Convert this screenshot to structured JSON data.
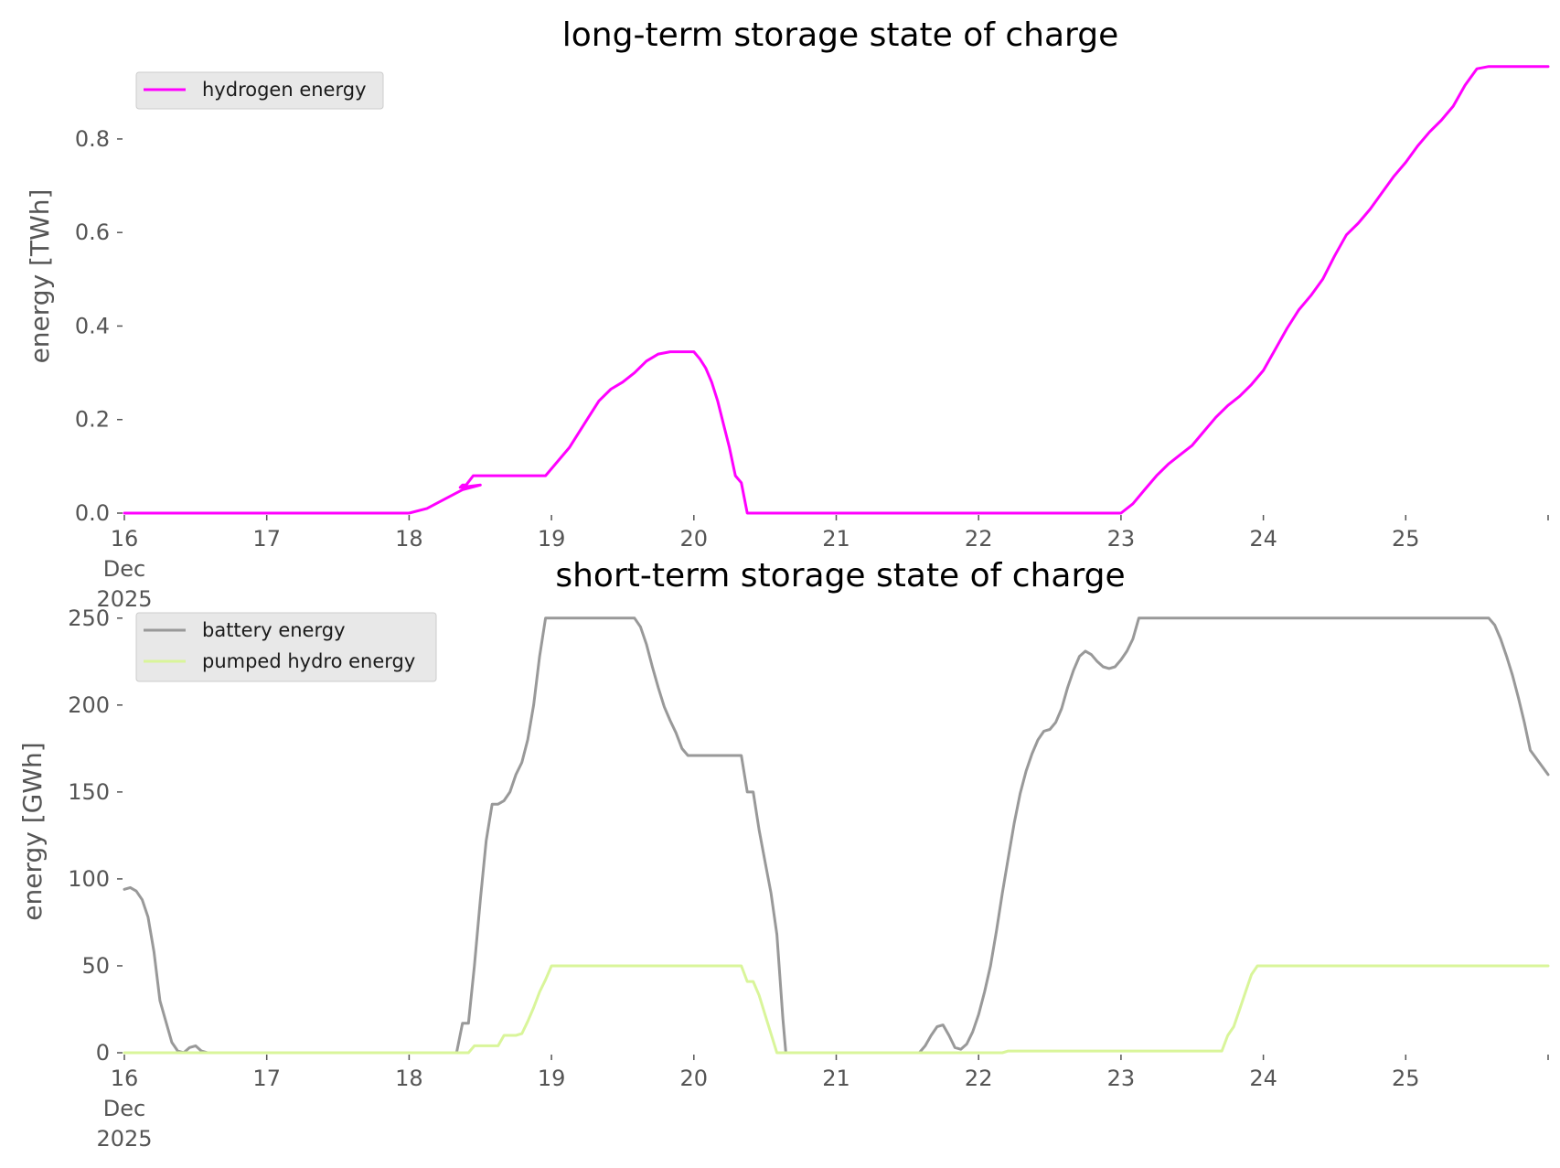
{
  "chart_data": [
    {
      "type": "line",
      "title": "long-term storage state of charge",
      "xlabel": "",
      "ylabel": "energy [TWh]",
      "x_axis": "date",
      "xlim": [
        "2025-12-16T00:00",
        "2025-12-26T00:00"
      ],
      "x_ticks": [
        "2025-12-16",
        "2025-12-17",
        "2025-12-18",
        "2025-12-19",
        "2025-12-20",
        "2025-12-21",
        "2025-12-22",
        "2025-12-23",
        "2025-12-24",
        "2025-12-25"
      ],
      "x_tick_labels": [
        [
          "16",
          "Dec",
          "2025"
        ],
        [
          "17"
        ],
        [
          "18"
        ],
        [
          "19"
        ],
        [
          "20"
        ],
        [
          "21"
        ],
        [
          "22"
        ],
        [
          "23"
        ],
        [
          "24"
        ],
        [
          "25"
        ]
      ],
      "ylim": [
        0,
        0.97
      ],
      "y_ticks": [
        0.0,
        0.2,
        0.4,
        0.6,
        0.8
      ],
      "y_tick_labels": [
        "0.0",
        "0.2",
        "0.4",
        "0.6",
        "0.8"
      ],
      "grid": false,
      "legend": {
        "position": "top-left"
      },
      "series": [
        {
          "name": "hydrogen energy",
          "color": "#ff00ff",
          "points": [
            [
              "2025-12-16T00:00",
              0.0
            ],
            [
              "2025-12-18T00:00",
              0.0
            ],
            [
              "2025-12-18T03:00",
              0.01
            ],
            [
              "2025-12-18T06:00",
              0.03
            ],
            [
              "2025-12-18T09:00",
              0.05
            ],
            [
              "2025-12-18T12:00",
              0.06
            ],
            [
              "2025-12-18T08:36",
              0.055
            ],
            [
              "2025-12-18T09:00",
              0.06
            ],
            [
              "2025-12-18T09:00",
              0.06
            ],
            [
              "2025-12-18T09:00",
              0.06
            ],
            [
              "2025-12-18T09:36",
              0.06
            ],
            [
              "2025-12-18T10:48",
              0.08
            ],
            [
              "2025-12-18T13:00",
              0.08
            ],
            [
              "2025-12-18T23:00",
              0.08
            ],
            [
              "2025-12-19T03:00",
              0.14
            ],
            [
              "2025-12-19T06:00",
              0.2
            ],
            [
              "2025-12-19T08:00",
              0.24
            ],
            [
              "2025-12-19T10:00",
              0.265
            ],
            [
              "2025-12-19T12:00",
              0.28
            ],
            [
              "2025-12-19T14:00",
              0.3
            ],
            [
              "2025-12-19T16:00",
              0.325
            ],
            [
              "2025-12-19T18:00",
              0.34
            ],
            [
              "2025-12-19T20:00",
              0.345
            ],
            [
              "2025-12-19T23:00",
              0.345
            ],
            [
              "2025-12-20T00:00",
              0.345
            ],
            [
              "2025-12-20T01:00",
              0.33
            ],
            [
              "2025-12-20T02:00",
              0.31
            ],
            [
              "2025-12-20T03:00",
              0.28
            ],
            [
              "2025-12-20T04:00",
              0.24
            ],
            [
              "2025-12-20T05:00",
              0.19
            ],
            [
              "2025-12-20T06:00",
              0.14
            ],
            [
              "2025-12-20T07:00",
              0.08
            ],
            [
              "2025-12-20T08:00",
              0.065
            ],
            [
              "2025-12-20T09:00",
              0.0
            ],
            [
              "2025-12-20T10:00",
              0.0
            ],
            [
              "2025-12-23T00:00",
              0.0
            ],
            [
              "2025-12-23T02:00",
              0.02
            ],
            [
              "2025-12-23T04:00",
              0.05
            ],
            [
              "2025-12-23T06:00",
              0.08
            ],
            [
              "2025-12-23T08:00",
              0.105
            ],
            [
              "2025-12-23T10:00",
              0.125
            ],
            [
              "2025-12-23T12:00",
              0.145
            ],
            [
              "2025-12-23T14:00",
              0.175
            ],
            [
              "2025-12-23T16:00",
              0.205
            ],
            [
              "2025-12-23T18:00",
              0.23
            ],
            [
              "2025-12-23T20:00",
              0.25
            ],
            [
              "2025-12-23T22:00",
              0.275
            ],
            [
              "2025-12-24T00:00",
              0.305
            ],
            [
              "2025-12-24T02:00",
              0.35
            ],
            [
              "2025-12-24T04:00",
              0.395
            ],
            [
              "2025-12-24T06:00",
              0.435
            ],
            [
              "2025-12-24T08:00",
              0.465
            ],
            [
              "2025-12-24T10:00",
              0.5
            ],
            [
              "2025-12-24T12:00",
              0.55
            ],
            [
              "2025-12-24T14:00",
              0.595
            ],
            [
              "2025-12-24T16:00",
              0.62
            ],
            [
              "2025-12-24T18:00",
              0.65
            ],
            [
              "2025-12-24T20:00",
              0.685
            ],
            [
              "2025-12-24T22:00",
              0.72
            ],
            [
              "2025-12-25T00:00",
              0.75
            ],
            [
              "2025-12-25T02:00",
              0.785
            ],
            [
              "2025-12-25T04:00",
              0.815
            ],
            [
              "2025-12-25T06:00",
              0.84
            ],
            [
              "2025-12-25T08:00",
              0.87
            ],
            [
              "2025-12-25T10:00",
              0.915
            ],
            [
              "2025-12-25T12:00",
              0.95
            ],
            [
              "2025-12-25T14:00",
              0.955
            ],
            [
              "2025-12-26T00:00",
              0.955
            ]
          ]
        }
      ]
    },
    {
      "type": "line",
      "title": "short-term storage state of charge",
      "xlabel": "",
      "ylabel": "energy [GWh]",
      "x_axis": "date",
      "xlim": [
        "2025-12-16T00:00",
        "2025-12-26T00:00"
      ],
      "x_ticks": [
        "2025-12-16",
        "2025-12-17",
        "2025-12-18",
        "2025-12-19",
        "2025-12-20",
        "2025-12-21",
        "2025-12-22",
        "2025-12-23",
        "2025-12-24",
        "2025-12-25"
      ],
      "x_tick_labels": [
        [
          "16",
          "Dec",
          "2025"
        ],
        [
          "17"
        ],
        [
          "18"
        ],
        [
          "19"
        ],
        [
          "20"
        ],
        [
          "21"
        ],
        [
          "22"
        ],
        [
          "23"
        ],
        [
          "24"
        ],
        [
          "25"
        ]
      ],
      "ylim": [
        0,
        252
      ],
      "y_ticks": [
        0,
        50,
        100,
        150,
        200,
        250
      ],
      "y_tick_labels": [
        "0",
        "50",
        "100",
        "150",
        "200",
        "250"
      ],
      "grid": false,
      "legend": {
        "position": "top-left"
      },
      "series": [
        {
          "name": "battery energy",
          "color": "#999999",
          "points": [
            [
              "2025-12-16T00:00",
              94
            ],
            [
              "2025-12-16T01:00",
              95
            ],
            [
              "2025-12-16T02:00",
              93
            ],
            [
              "2025-12-16T03:00",
              88
            ],
            [
              "2025-12-16T04:00",
              78
            ],
            [
              "2025-12-16T05:00",
              58
            ],
            [
              "2025-12-16T06:00",
              30
            ],
            [
              "2025-12-16T08:00",
              6
            ],
            [
              "2025-12-16T09:00",
              1
            ],
            [
              "2025-12-16T10:00",
              0
            ],
            [
              "2025-12-16T11:00",
              3
            ],
            [
              "2025-12-16T12:00",
              4
            ],
            [
              "2025-12-16T13:00",
              1
            ],
            [
              "2025-12-16T14:00",
              0
            ],
            [
              "2025-12-18T08:00",
              0
            ],
            [
              "2025-12-18T09:00",
              17
            ],
            [
              "2025-12-18T10:00",
              17
            ],
            [
              "2025-12-18T11:00",
              50
            ],
            [
              "2025-12-18T12:00",
              88
            ],
            [
              "2025-12-18T13:00",
              122
            ],
            [
              "2025-12-18T14:00",
              143
            ],
            [
              "2025-12-18T15:00",
              143
            ],
            [
              "2025-12-18T16:00",
              145
            ],
            [
              "2025-12-18T17:00",
              150
            ],
            [
              "2025-12-18T18:00",
              160
            ],
            [
              "2025-12-18T19:00",
              167
            ],
            [
              "2025-12-18T20:00",
              180
            ],
            [
              "2025-12-18T21:00",
              200
            ],
            [
              "2025-12-18T22:00",
              228
            ],
            [
              "2025-12-18T23:00",
              250
            ],
            [
              "2025-12-19T14:00",
              250
            ],
            [
              "2025-12-19T15:00",
              245
            ],
            [
              "2025-12-19T16:00",
              235
            ],
            [
              "2025-12-19T17:00",
              222
            ],
            [
              "2025-12-19T18:00",
              210
            ],
            [
              "2025-12-19T19:00",
              199
            ],
            [
              "2025-12-19T20:00",
              191
            ],
            [
              "2025-12-19T21:00",
              184
            ],
            [
              "2025-12-19T22:00",
              175
            ],
            [
              "2025-12-19T23:00",
              171
            ],
            [
              "2025-12-20T08:00",
              171
            ],
            [
              "2025-12-20T09:00",
              150
            ],
            [
              "2025-12-20T10:00",
              150
            ],
            [
              "2025-12-20T11:00",
              128
            ],
            [
              "2025-12-20T12:00",
              110
            ],
            [
              "2025-12-20T13:00",
              92
            ],
            [
              "2025-12-20T14:00",
              68
            ],
            [
              "2025-12-20T15:00",
              20
            ],
            [
              "2025-12-20T15:30",
              0
            ],
            [
              "2025-12-21T14:00",
              0
            ],
            [
              "2025-12-21T15:00",
              4
            ],
            [
              "2025-12-21T16:00",
              10
            ],
            [
              "2025-12-21T17:00",
              15
            ],
            [
              "2025-12-21T18:00",
              16
            ],
            [
              "2025-12-21T19:00",
              10
            ],
            [
              "2025-12-21T20:00",
              3
            ],
            [
              "2025-12-21T21:00",
              2
            ],
            [
              "2025-12-21T22:00",
              5
            ],
            [
              "2025-12-21T23:00",
              12
            ],
            [
              "2025-12-22T00:00",
              22
            ],
            [
              "2025-12-22T01:00",
              35
            ],
            [
              "2025-12-22T02:00",
              50
            ],
            [
              "2025-12-22T03:00",
              70
            ],
            [
              "2025-12-22T04:00",
              92
            ],
            [
              "2025-12-22T05:00",
              112
            ],
            [
              "2025-12-22T06:00",
              132
            ],
            [
              "2025-12-22T07:00",
              149
            ],
            [
              "2025-12-22T08:00",
              162
            ],
            [
              "2025-12-22T09:00",
              172
            ],
            [
              "2025-12-22T10:00",
              180
            ],
            [
              "2025-12-22T11:00",
              185
            ],
            [
              "2025-12-22T12:00",
              186
            ],
            [
              "2025-12-22T13:00",
              190
            ],
            [
              "2025-12-22T14:00",
              198
            ],
            [
              "2025-12-22T15:00",
              210
            ],
            [
              "2025-12-22T16:00",
              220
            ],
            [
              "2025-12-22T17:00",
              228
            ],
            [
              "2025-12-22T18:00",
              231
            ],
            [
              "2025-12-22T19:00",
              229
            ],
            [
              "2025-12-22T20:00",
              225
            ],
            [
              "2025-12-22T21:00",
              222
            ],
            [
              "2025-12-22T22:00",
              221
            ],
            [
              "2025-12-22T23:00",
              222
            ],
            [
              "2025-12-23T00:00",
              226
            ],
            [
              "2025-12-23T01:00",
              231
            ],
            [
              "2025-12-23T02:00",
              238
            ],
            [
              "2025-12-23T03:00",
              250
            ],
            [
              "2025-12-25T14:00",
              250
            ],
            [
              "2025-12-25T15:00",
              246
            ],
            [
              "2025-12-25T16:00",
              238
            ],
            [
              "2025-12-25T17:00",
              228
            ],
            [
              "2025-12-25T18:00",
              217
            ],
            [
              "2025-12-25T19:00",
              204
            ],
            [
              "2025-12-25T20:00",
              190
            ],
            [
              "2025-12-25T21:00",
              174
            ],
            [
              "2025-12-26T00:00",
              160
            ]
          ]
        },
        {
          "name": "pumped hydro energy",
          "color": "#d9f59a",
          "points": [
            [
              "2025-12-16T00:00",
              0
            ],
            [
              "2025-12-18T10:00",
              0
            ],
            [
              "2025-12-18T11:00",
              4
            ],
            [
              "2025-12-18T14:00",
              4
            ],
            [
              "2025-12-18T15:00",
              4
            ],
            [
              "2025-12-18T16:00",
              10
            ],
            [
              "2025-12-18T18:00",
              10
            ],
            [
              "2025-12-18T19:00",
              11
            ],
            [
              "2025-12-18T20:00",
              18
            ],
            [
              "2025-12-18T21:00",
              26
            ],
            [
              "2025-12-18T22:00",
              35
            ],
            [
              "2025-12-18T23:00",
              42
            ],
            [
              "2025-12-19T00:00",
              50
            ],
            [
              "2025-12-20T08:00",
              50
            ],
            [
              "2025-12-20T09:00",
              41
            ],
            [
              "2025-12-20T10:00",
              41
            ],
            [
              "2025-12-20T11:00",
              33
            ],
            [
              "2025-12-20T12:00",
              22
            ],
            [
              "2025-12-20T13:00",
              11
            ],
            [
              "2025-12-20T14:00",
              0
            ],
            [
              "2025-12-22T04:00",
              0
            ],
            [
              "2025-12-22T05:00",
              1
            ],
            [
              "2025-12-23T17:00",
              1
            ],
            [
              "2025-12-23T18:00",
              10
            ],
            [
              "2025-12-23T19:00",
              15
            ],
            [
              "2025-12-23T20:00",
              25
            ],
            [
              "2025-12-23T21:00",
              35
            ],
            [
              "2025-12-23T22:00",
              45
            ],
            [
              "2025-12-23T23:00",
              50
            ],
            [
              "2025-12-26T00:00",
              50
            ]
          ]
        }
      ]
    }
  ]
}
